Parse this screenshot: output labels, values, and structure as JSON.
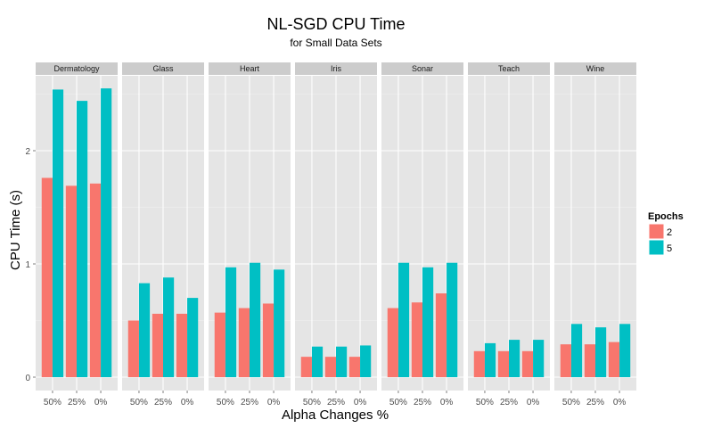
{
  "chart_data": {
    "type": "bar",
    "title": "NL-SGD CPU Time",
    "subtitle": "for Small Data Sets",
    "xlabel": "Alpha Changes %",
    "ylabel": "CPU Time (s)",
    "ylim": [
      0,
      2.6
    ],
    "y_ticks": [
      0,
      1,
      2
    ],
    "y_tick_labels": [
      "0",
      "1",
      "2"
    ],
    "categories": [
      "50%",
      "25%",
      "0%"
    ],
    "grid": true,
    "legend": {
      "title": "Epochs",
      "position": "right",
      "items": [
        {
          "label": "2",
          "color": "#F8766D"
        },
        {
          "label": "5",
          "color": "#00BFC4"
        }
      ]
    },
    "panel_background": "#E5E5E5",
    "strip_background": "#CCCCCC",
    "grid_color": "#FFFFFF",
    "panels": [
      {
        "name": "Dermatology",
        "series": [
          {
            "name": "2",
            "values": [
              1.76,
              1.69,
              1.71
            ]
          },
          {
            "name": "5",
            "values": [
              2.54,
              2.44,
              2.55
            ]
          }
        ]
      },
      {
        "name": "Glass",
        "series": [
          {
            "name": "2",
            "values": [
              0.5,
              0.56,
              0.56
            ]
          },
          {
            "name": "5",
            "values": [
              0.83,
              0.88,
              0.7
            ]
          }
        ]
      },
      {
        "name": "Heart",
        "series": [
          {
            "name": "2",
            "values": [
              0.57,
              0.61,
              0.65
            ]
          },
          {
            "name": "5",
            "values": [
              0.97,
              1.01,
              0.95
            ]
          }
        ]
      },
      {
        "name": "Iris",
        "series": [
          {
            "name": "2",
            "values": [
              0.18,
              0.18,
              0.18
            ]
          },
          {
            "name": "5",
            "values": [
              0.27,
              0.27,
              0.28
            ]
          }
        ]
      },
      {
        "name": "Sonar",
        "series": [
          {
            "name": "2",
            "values": [
              0.61,
              0.66,
              0.74
            ]
          },
          {
            "name": "5",
            "values": [
              1.01,
              0.97,
              1.01
            ]
          }
        ]
      },
      {
        "name": "Teach",
        "series": [
          {
            "name": "2",
            "values": [
              0.23,
              0.23,
              0.23
            ]
          },
          {
            "name": "5",
            "values": [
              0.3,
              0.33,
              0.33
            ]
          }
        ]
      },
      {
        "name": "Wine",
        "series": [
          {
            "name": "2",
            "values": [
              0.29,
              0.29,
              0.31
            ]
          },
          {
            "name": "5",
            "values": [
              0.47,
              0.44,
              0.47
            ]
          }
        ]
      }
    ]
  }
}
